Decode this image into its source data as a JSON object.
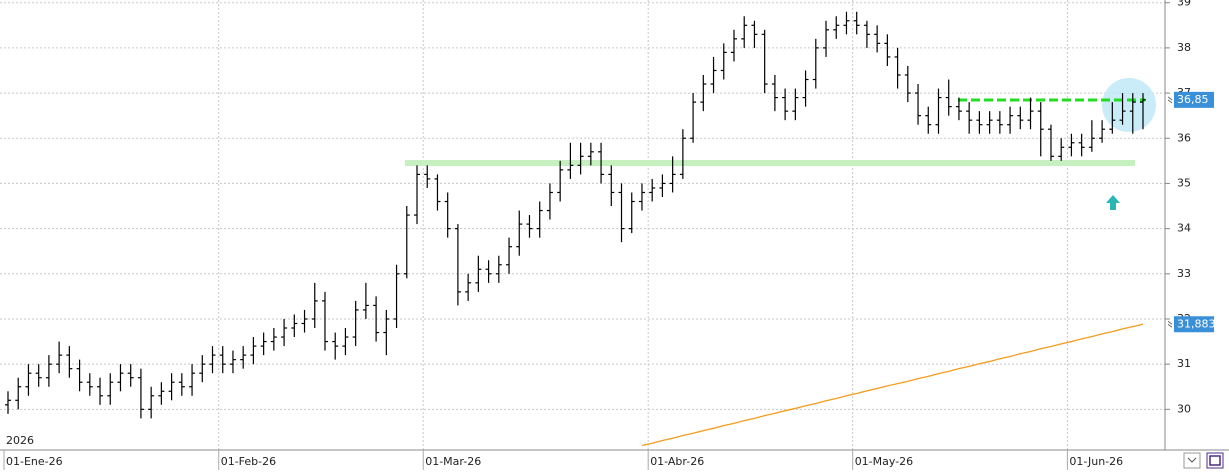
{
  "chart_data": {
    "type": "ohlc",
    "year_label": "2026",
    "categories": [
      "01-Ene-26",
      null,
      null,
      null,
      null,
      null,
      null,
      null,
      null,
      null,
      null,
      null,
      null,
      null,
      null,
      null,
      null,
      null,
      null,
      null,
      null,
      "01-Feb-26",
      null,
      null,
      null,
      null,
      null,
      null,
      null,
      null,
      null,
      null,
      null,
      null,
      null,
      null,
      null,
      null,
      null,
      null,
      null,
      "01-Mar-26",
      null,
      null,
      null,
      null,
      null,
      null,
      null,
      null,
      null,
      null,
      null,
      null,
      null,
      null,
      null,
      null,
      null,
      null,
      null,
      null,
      null,
      "01-Abr-26",
      null,
      null,
      null,
      null,
      null,
      null,
      null,
      null,
      null,
      null,
      null,
      null,
      null,
      null,
      null,
      null,
      null,
      null,
      null,
      "01-May-26",
      null,
      null,
      null,
      null,
      null,
      null,
      null,
      null,
      null,
      null,
      null,
      null,
      null,
      null,
      null,
      null,
      null,
      null,
      null,
      null,
      "01-Jun-26",
      null,
      null,
      null,
      null,
      null,
      null,
      null
    ],
    "open": [
      30.1,
      30.2,
      30.5,
      30.8,
      30.7,
      31.0,
      31.2,
      30.9,
      30.6,
      30.5,
      30.3,
      30.6,
      30.8,
      30.7,
      30.0,
      30.3,
      30.4,
      30.6,
      30.5,
      30.8,
      31.0,
      31.2,
      31.0,
      31.1,
      31.2,
      31.4,
      31.5,
      31.6,
      31.8,
      31.9,
      32.0,
      32.4,
      31.5,
      31.4,
      31.6,
      32.2,
      32.3,
      31.7,
      32.0,
      33.0,
      34.3,
      35.2,
      35.1,
      34.6,
      34.0,
      32.6,
      32.8,
      33.1,
      33.0,
      33.2,
      33.6,
      34.1,
      34.0,
      34.4,
      34.8,
      35.3,
      35.4,
      35.6,
      35.7,
      35.2,
      34.8,
      34.0,
      34.6,
      34.8,
      34.9,
      35.0,
      35.2,
      36.0,
      36.8,
      37.2,
      37.5,
      37.9,
      38.2,
      38.5,
      38.3,
      37.2,
      36.9,
      36.6,
      36.9,
      37.3,
      38.0,
      38.4,
      38.5,
      38.6,
      38.5,
      38.3,
      38.1,
      37.8,
      37.4,
      37.0,
      36.5,
      36.3,
      36.9,
      36.7,
      36.6,
      36.4,
      36.3,
      36.4,
      36.3,
      36.5,
      36.4,
      36.6,
      36.2,
      35.6,
      35.8,
      35.9,
      35.8,
      36.0,
      36.2,
      36.4,
      36.6,
      36.8
    ],
    "high": [
      30.4,
      30.7,
      31.0,
      31.0,
      31.2,
      31.5,
      31.4,
      31.1,
      30.8,
      30.7,
      30.8,
      31.0,
      31.0,
      30.9,
      30.5,
      30.6,
      30.8,
      30.8,
      31.0,
      31.2,
      31.4,
      31.4,
      31.3,
      31.4,
      31.6,
      31.7,
      31.8,
      32.0,
      32.1,
      32.2,
      32.8,
      32.6,
      31.7,
      31.8,
      32.4,
      32.8,
      32.5,
      32.2,
      33.2,
      34.5,
      35.4,
      35.4,
      35.2,
      34.8,
      34.1,
      33.0,
      33.4,
      33.3,
      33.4,
      33.8,
      34.4,
      34.3,
      34.6,
      35.0,
      35.5,
      35.9,
      35.9,
      35.9,
      35.9,
      35.4,
      35.0,
      34.8,
      35.0,
      35.1,
      35.2,
      35.6,
      36.2,
      37.0,
      37.4,
      37.8,
      38.1,
      38.4,
      38.7,
      38.6,
      38.4,
      37.4,
      37.1,
      37.1,
      37.5,
      38.2,
      38.6,
      38.7,
      38.8,
      38.8,
      38.6,
      38.5,
      38.3,
      38.0,
      37.6,
      37.2,
      36.7,
      37.1,
      37.3,
      36.9,
      36.8,
      36.6,
      36.6,
      36.6,
      36.7,
      36.7,
      36.9,
      36.8,
      36.3,
      36.0,
      36.1,
      36.1,
      36.4,
      36.4,
      36.8,
      37.0,
      37.0,
      37.0
    ],
    "low": [
      29.9,
      30.0,
      30.3,
      30.5,
      30.5,
      30.8,
      30.7,
      30.4,
      30.3,
      30.1,
      30.1,
      30.4,
      30.5,
      29.8,
      29.8,
      30.1,
      30.2,
      30.3,
      30.3,
      30.6,
      30.8,
      30.8,
      30.8,
      30.9,
      31.0,
      31.2,
      31.3,
      31.4,
      31.6,
      31.7,
      31.8,
      31.3,
      31.1,
      31.2,
      31.4,
      32.0,
      31.5,
      31.2,
      31.8,
      32.9,
      34.1,
      34.9,
      34.4,
      33.8,
      32.3,
      32.4,
      32.6,
      32.8,
      32.8,
      33.0,
      33.4,
      33.8,
      33.8,
      34.2,
      34.6,
      35.1,
      35.2,
      35.4,
      35.0,
      34.5,
      33.7,
      33.9,
      34.4,
      34.6,
      34.7,
      34.8,
      35.1,
      35.9,
      36.6,
      37.0,
      37.3,
      37.7,
      38.0,
      38.0,
      37.0,
      36.6,
      36.4,
      36.4,
      36.7,
      37.1,
      37.8,
      38.2,
      38.3,
      38.3,
      38.0,
      37.9,
      37.6,
      37.1,
      36.8,
      36.3,
      36.1,
      36.1,
      36.5,
      36.4,
      36.1,
      36.1,
      36.1,
      36.1,
      36.1,
      36.2,
      36.2,
      35.6,
      35.5,
      35.5,
      35.6,
      35.6,
      35.7,
      35.9,
      36.1,
      36.3,
      36.1,
      36.2
    ],
    "close": [
      30.2,
      30.5,
      30.8,
      30.7,
      31.0,
      31.2,
      30.9,
      30.6,
      30.5,
      30.3,
      30.6,
      30.8,
      30.7,
      30.0,
      30.3,
      30.4,
      30.6,
      30.5,
      30.8,
      31.0,
      31.2,
      31.0,
      31.1,
      31.2,
      31.4,
      31.5,
      31.6,
      31.8,
      31.9,
      32.0,
      32.4,
      31.5,
      31.4,
      31.6,
      32.2,
      32.3,
      31.7,
      32.0,
      33.0,
      34.3,
      35.2,
      35.1,
      34.6,
      34.0,
      32.6,
      32.8,
      33.1,
      33.0,
      33.2,
      33.6,
      34.1,
      34.0,
      34.4,
      34.8,
      35.3,
      35.4,
      35.6,
      35.7,
      35.2,
      34.8,
      34.0,
      34.6,
      34.8,
      34.9,
      35.0,
      35.2,
      36.0,
      36.8,
      37.2,
      37.5,
      37.9,
      38.2,
      38.5,
      38.3,
      37.2,
      36.9,
      36.6,
      36.9,
      37.3,
      38.0,
      38.4,
      38.5,
      38.6,
      38.5,
      38.3,
      38.1,
      37.8,
      37.4,
      37.0,
      36.5,
      36.3,
      36.9,
      36.7,
      36.6,
      36.4,
      36.3,
      36.4,
      36.3,
      36.5,
      36.4,
      36.6,
      36.2,
      35.6,
      35.8,
      35.9,
      35.8,
      36.0,
      36.2,
      36.4,
      36.6,
      36.8,
      36.85
    ],
    "bar_color": "#000000",
    "moving_average": {
      "color": "#f39c1e",
      "values": [
        null,
        null,
        null,
        null,
        null,
        null,
        null,
        null,
        null,
        null,
        null,
        null,
        null,
        null,
        null,
        null,
        null,
        null,
        null,
        null,
        null,
        null,
        null,
        null,
        null,
        null,
        null,
        null,
        null,
        null,
        null,
        null,
        null,
        null,
        null,
        null,
        null,
        null,
        null,
        null,
        null,
        null,
        null,
        null,
        null,
        null,
        null,
        null,
        null,
        null,
        null,
        null,
        null,
        null,
        null,
        null,
        null,
        null,
        null,
        null,
        null,
        null,
        29.2,
        29.25,
        29.31,
        29.36,
        29.42,
        29.47,
        29.53,
        29.58,
        29.64,
        29.69,
        29.75,
        29.8,
        29.86,
        29.91,
        29.97,
        30.02,
        30.08,
        30.13,
        30.19,
        30.24,
        30.3,
        30.35,
        30.41,
        30.46,
        30.52,
        30.57,
        30.62,
        30.68,
        30.73,
        30.79,
        30.84,
        30.9,
        30.95,
        31.01,
        31.06,
        31.12,
        31.17,
        31.23,
        31.28,
        31.34,
        31.39,
        31.45,
        31.5,
        31.56,
        31.61,
        31.67,
        31.72,
        31.78,
        31.83,
        31.883
      ]
    },
    "price_labels": [
      {
        "value": 36.85,
        "label": "36,85"
      },
      {
        "value": 31.883,
        "label": "31,883"
      }
    ],
    "label_color": "#3a8fd9",
    "ylim": [
      29.1,
      39.06
    ],
    "yticks": [
      30,
      31,
      32,
      33,
      34,
      35,
      36,
      37,
      38,
      39
    ],
    "grid": true
  }
}
